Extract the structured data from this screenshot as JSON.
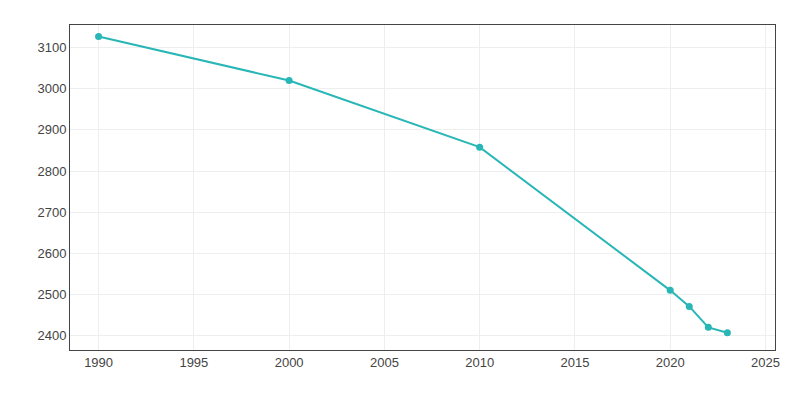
{
  "chart_data": {
    "type": "line",
    "x": [
      1990,
      2000,
      2010,
      2020,
      2021,
      2022,
      2023
    ],
    "values": [
      3127,
      3020,
      2858,
      2510,
      2471,
      2420,
      2407
    ],
    "color": "#29b6b6",
    "marker": "circle",
    "xlim": [
      1988.5,
      2025.5
    ],
    "ylim": [
      2365,
      3155
    ],
    "xticks": [
      1990,
      1995,
      2000,
      2005,
      2010,
      2015,
      2020,
      2025
    ],
    "yticks": [
      2400,
      2500,
      2600,
      2700,
      2800,
      2900,
      3000,
      3100
    ],
    "grid": true
  }
}
